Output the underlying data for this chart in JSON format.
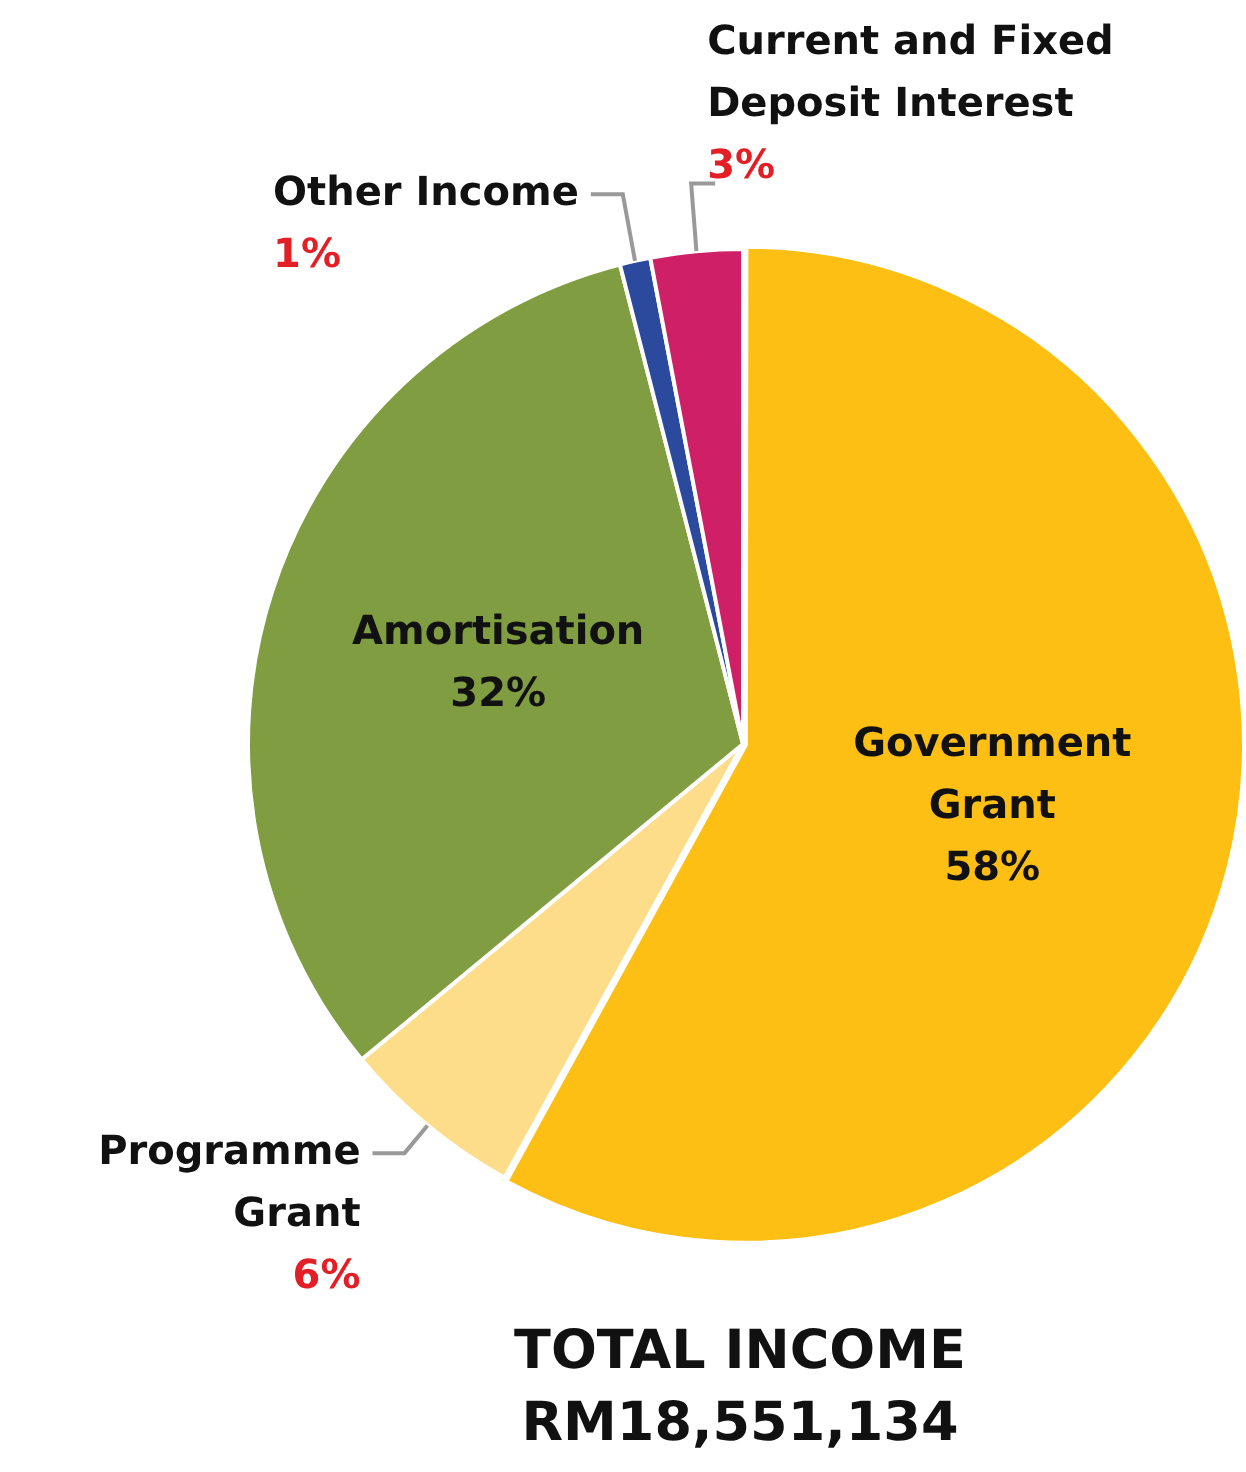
{
  "chart_data": {
    "type": "pie",
    "categories": [
      "Government Grant",
      "Programme Grant",
      "Amortisation",
      "Other Income",
      "Current and Fixed Deposit Interest"
    ],
    "values": [
      58,
      6,
      32,
      1,
      3
    ],
    "value_labels": [
      "58%",
      "6%",
      "32%",
      "1%",
      "3%"
    ],
    "colors": [
      "#fdbf14",
      "#fedd8a",
      "#819d41",
      "#2b4a9d",
      "#cf1f67"
    ],
    "annotations": [
      "TOTAL INCOME",
      "RM18,551,134"
    ]
  }
}
